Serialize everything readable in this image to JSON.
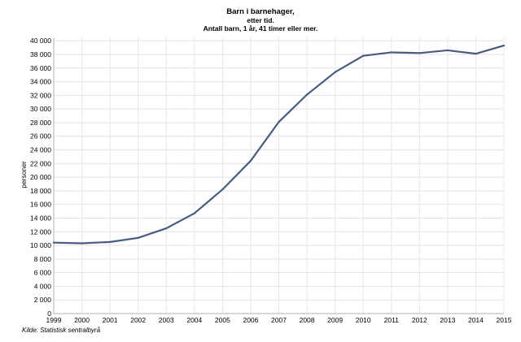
{
  "chart_data": {
    "type": "line",
    "title": "Barn i barnehager,",
    "subtitle_lines": [
      "etter tid.",
      "Antall barn, 1 år, 41 timer eller mer."
    ],
    "xlabel": "",
    "ylabel": "personer",
    "source": "Kilde: Statistisk sentralbyrå",
    "x_ticks": [
      "1999",
      "2000",
      "2001",
      "2002",
      "2003",
      "2004",
      "2005",
      "2006",
      "2007",
      "2008",
      "2009",
      "2010",
      "2011",
      "2012",
      "2013",
      "2014",
      "2015"
    ],
    "y_ticks": [
      "0",
      "2 000",
      "4 000",
      "6 000",
      "8 000",
      "10 000",
      "12 000",
      "14 000",
      "16 000",
      "18 000",
      "20 000",
      "22 000",
      "24 000",
      "26 000",
      "28 000",
      "30 000",
      "32 000",
      "34 000",
      "36 000",
      "38 000",
      "40 000"
    ],
    "xlim": [
      1999,
      2015
    ],
    "ylim": [
      0,
      40500
    ],
    "grid": true,
    "legend": "none",
    "line_color": "#4a5b80",
    "series": [
      {
        "x": [
          1999,
          2000,
          2001,
          2002,
          2003,
          2004,
          2005,
          2006,
          2007,
          2008,
          2009,
          2010,
          2011,
          2012,
          2013,
          2014,
          2015
        ],
        "values": [
          10400,
          10300,
          10500,
          11100,
          12500,
          14700,
          18200,
          22400,
          28100,
          32100,
          35400,
          37800,
          38300,
          38200,
          38600,
          38100,
          39300
        ]
      }
    ]
  }
}
